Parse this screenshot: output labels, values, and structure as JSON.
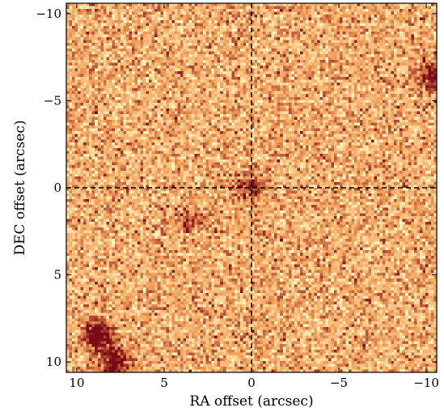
{
  "chart_data": {
    "type": "heatmap",
    "title": "",
    "xlabel": "RA offset (arcsec)",
    "ylabel": "DEC offset (arcsec)",
    "xlim": [
      10.6,
      -10.6
    ],
    "ylim": [
      -10.6,
      10.6
    ],
    "x_ticks": [
      {
        "value": 10,
        "label": "10"
      },
      {
        "value": 5,
        "label": "5"
      },
      {
        "value": 0,
        "label": "0"
      },
      {
        "value": -5,
        "label": "−5"
      },
      {
        "value": -10,
        "label": "−10"
      }
    ],
    "y_ticks": [
      {
        "value": -10,
        "label": "−10"
      },
      {
        "value": -5,
        "label": "−5"
      },
      {
        "value": 0,
        "label": "0"
      },
      {
        "value": 5,
        "label": "5"
      },
      {
        "value": 10,
        "label": "10"
      }
    ],
    "crosshair": {
      "x": 0,
      "y": 0,
      "style": "dashed",
      "color": "#000000"
    },
    "colormap": "YlOrRd-like (pale yellow to dark red)",
    "colors": {
      "low": "#fff7c0",
      "mid": "#f3a05a",
      "high": "#7a0a14"
    },
    "features": [
      {
        "label": "bright source lower-left",
        "x": 8.8,
        "y": 8.5,
        "intensity": 1.0
      },
      {
        "label": "source lower-left tail",
        "x": 7.8,
        "y": 10.0,
        "intensity": 0.85
      },
      {
        "label": "source upper-right",
        "x": -10.3,
        "y": -6.5,
        "intensity": 0.8
      },
      {
        "label": "central faint source",
        "x": 0.1,
        "y": -0.1,
        "intensity": 0.55
      },
      {
        "label": "faint source",
        "x": 3.5,
        "y": 1.8,
        "intensity": 0.4
      }
    ],
    "grid": false
  }
}
